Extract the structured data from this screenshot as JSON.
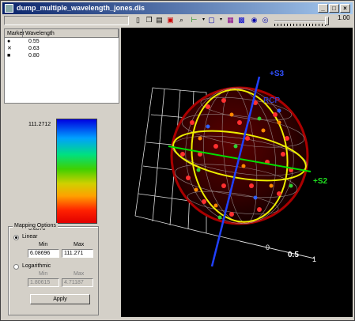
{
  "window": {
    "title": "dump_multiple_wavelength_jones.dis"
  },
  "toolbar": {
    "slider_value": "1.00"
  },
  "legend_table": {
    "headers": [
      "Marker",
      "Wavelength"
    ],
    "rows": [
      {
        "marker": "●",
        "wavelength": "0.55"
      },
      {
        "marker": "✕",
        "wavelength": "0.63"
      },
      {
        "marker": "■",
        "wavelength": "0.80"
      }
    ]
  },
  "colorbar": {
    "max_label": "111.2712",
    "min_label": "6.0870"
  },
  "mapping_options": {
    "title": "Mapping Options",
    "linear": {
      "label": "Linear",
      "min_label": "Min",
      "max_label": "Max",
      "min_value": "6.08696",
      "max_value": "111.271"
    },
    "logarithmic": {
      "label": "Logarithmic",
      "min_label": "Min",
      "max_label": "Max",
      "min_value": "1.80615",
      "max_value": "4.71187"
    },
    "apply_label": "Apply"
  },
  "sphere": {
    "axis_s3": "+S3",
    "axis_s2": "+S2",
    "rcp": "RCP",
    "scale_0": "0",
    "scale_05": "0.5",
    "scale_1": "1"
  }
}
